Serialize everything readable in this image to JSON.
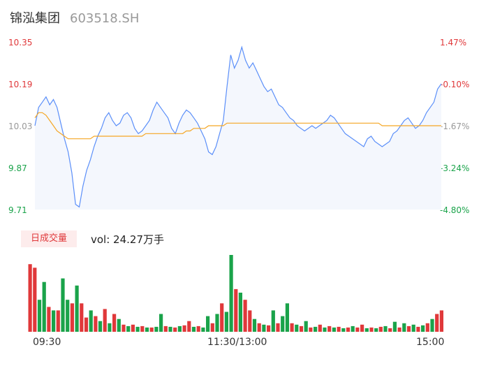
{
  "header": {
    "name": "锦泓集团",
    "code": "603518.SH"
  },
  "volume": {
    "badge": "日成交量",
    "text": "vol: 24.27万手"
  },
  "colors": {
    "up": "#e0383a",
    "down": "#1aa34a",
    "neutral": "#999999",
    "price_line": "#5b8ff9",
    "avg_line": "#f5a623"
  },
  "chart_data": [
    {
      "type": "line",
      "title": "",
      "y_labels_left": [
        "10.35",
        "10.19",
        "10.03",
        "9.87",
        "9.71"
      ],
      "y_labels_right": [
        "1.47%",
        "-0.10%",
        "-1.67%",
        "-3.24%",
        "-4.80%"
      ],
      "ylim": [
        9.71,
        10.35
      ],
      "x_labels": [
        "09:30",
        "11:30/13:00",
        "15:00"
      ],
      "series": [
        {
          "name": "price",
          "values": [
            10.03,
            10.1,
            10.12,
            10.14,
            10.11,
            10.13,
            10.1,
            10.04,
            9.98,
            9.93,
            9.85,
            9.73,
            9.72,
            9.8,
            9.86,
            9.9,
            9.95,
            9.99,
            10.02,
            10.06,
            10.08,
            10.05,
            10.03,
            10.04,
            10.07,
            10.08,
            10.06,
            10.02,
            10.0,
            10.01,
            10.03,
            10.05,
            10.09,
            10.12,
            10.1,
            10.08,
            10.06,
            10.02,
            10.0,
            10.04,
            10.07,
            10.09,
            10.08,
            10.06,
            10.04,
            10.01,
            9.98,
            9.93,
            9.92,
            9.95,
            10.0,
            10.05,
            10.18,
            10.3,
            10.25,
            10.28,
            10.33,
            10.28,
            10.25,
            10.27,
            10.24,
            10.21,
            10.18,
            10.16,
            10.17,
            10.14,
            10.11,
            10.1,
            10.08,
            10.06,
            10.05,
            10.03,
            10.02,
            10.01,
            10.02,
            10.03,
            10.02,
            10.03,
            10.04,
            10.05,
            10.07,
            10.06,
            10.04,
            10.02,
            10.0,
            9.99,
            9.98,
            9.97,
            9.96,
            9.95,
            9.98,
            9.99,
            9.97,
            9.96,
            9.95,
            9.96,
            9.97,
            10.0,
            10.01,
            10.03,
            10.05,
            10.06,
            10.04,
            10.02,
            10.03,
            10.05,
            10.08,
            10.1,
            10.12,
            10.17,
            10.19
          ]
        },
        {
          "name": "average",
          "values": [
            10.06,
            10.08,
            10.08,
            10.07,
            10.05,
            10.03,
            10.01,
            10.0,
            9.99,
            9.98,
            9.98,
            9.98,
            9.98,
            9.98,
            9.98,
            9.98,
            9.99,
            9.99,
            9.99,
            9.99,
            9.99,
            9.99,
            9.99,
            9.99,
            9.99,
            9.99,
            9.99,
            9.99,
            9.99,
            9.99,
            10.0,
            10.0,
            10.0,
            10.0,
            10.0,
            10.0,
            10.0,
            10.0,
            10.0,
            10.0,
            10.0,
            10.01,
            10.01,
            10.02,
            10.02,
            10.02,
            10.02,
            10.03,
            10.03,
            10.03,
            10.03,
            10.03,
            10.04,
            10.04,
            10.04,
            10.04,
            10.04,
            10.04,
            10.04,
            10.04,
            10.04,
            10.04,
            10.04,
            10.04,
            10.04,
            10.04,
            10.04,
            10.04,
            10.04,
            10.04,
            10.04,
            10.04,
            10.04,
            10.04,
            10.04,
            10.04,
            10.04,
            10.04,
            10.04,
            10.04,
            10.04,
            10.04,
            10.04,
            10.04,
            10.04,
            10.04,
            10.04,
            10.04,
            10.04,
            10.04,
            10.04,
            10.04,
            10.04,
            10.04,
            10.03,
            10.03,
            10.03,
            10.03,
            10.03,
            10.03,
            10.03,
            10.03,
            10.03,
            10.03,
            10.03,
            10.03,
            10.03,
            10.03,
            10.03,
            10.03,
            10.03
          ]
        }
      ]
    },
    {
      "type": "bar",
      "title": "",
      "volume_bars": [
        {
          "v": 95,
          "c": "up"
        },
        {
          "v": 90,
          "c": "up"
        },
        {
          "v": 45,
          "c": "down"
        },
        {
          "v": 70,
          "c": "down"
        },
        {
          "v": 35,
          "c": "up"
        },
        {
          "v": 30,
          "c": "down"
        },
        {
          "v": 30,
          "c": "up"
        },
        {
          "v": 75,
          "c": "down"
        },
        {
          "v": 45,
          "c": "down"
        },
        {
          "v": 40,
          "c": "up"
        },
        {
          "v": 65,
          "c": "down"
        },
        {
          "v": 40,
          "c": "up"
        },
        {
          "v": 20,
          "c": "up"
        },
        {
          "v": 30,
          "c": "down"
        },
        {
          "v": 22,
          "c": "up"
        },
        {
          "v": 15,
          "c": "down"
        },
        {
          "v": 32,
          "c": "up"
        },
        {
          "v": 12,
          "c": "down"
        },
        {
          "v": 25,
          "c": "up"
        },
        {
          "v": 18,
          "c": "down"
        },
        {
          "v": 10,
          "c": "up"
        },
        {
          "v": 8,
          "c": "down"
        },
        {
          "v": 10,
          "c": "up"
        },
        {
          "v": 7,
          "c": "down"
        },
        {
          "v": 8,
          "c": "up"
        },
        {
          "v": 6,
          "c": "down"
        },
        {
          "v": 6,
          "c": "up"
        },
        {
          "v": 7,
          "c": "down"
        },
        {
          "v": 25,
          "c": "down"
        },
        {
          "v": 8,
          "c": "up"
        },
        {
          "v": 7,
          "c": "down"
        },
        {
          "v": 6,
          "c": "up"
        },
        {
          "v": 8,
          "c": "down"
        },
        {
          "v": 9,
          "c": "up"
        },
        {
          "v": 15,
          "c": "up"
        },
        {
          "v": 7,
          "c": "down"
        },
        {
          "v": 8,
          "c": "up"
        },
        {
          "v": 6,
          "c": "down"
        },
        {
          "v": 22,
          "c": "down"
        },
        {
          "v": 12,
          "c": "up"
        },
        {
          "v": 25,
          "c": "down"
        },
        {
          "v": 40,
          "c": "up"
        },
        {
          "v": 28,
          "c": "down"
        },
        {
          "v": 108,
          "c": "down"
        },
        {
          "v": 60,
          "c": "up"
        },
        {
          "v": 55,
          "c": "down"
        },
        {
          "v": 45,
          "c": "up"
        },
        {
          "v": 30,
          "c": "up"
        },
        {
          "v": 18,
          "c": "down"
        },
        {
          "v": 12,
          "c": "up"
        },
        {
          "v": 10,
          "c": "down"
        },
        {
          "v": 9,
          "c": "up"
        },
        {
          "v": 30,
          "c": "down"
        },
        {
          "v": 12,
          "c": "up"
        },
        {
          "v": 22,
          "c": "down"
        },
        {
          "v": 40,
          "c": "down"
        },
        {
          "v": 12,
          "c": "up"
        },
        {
          "v": 10,
          "c": "down"
        },
        {
          "v": 8,
          "c": "up"
        },
        {
          "v": 15,
          "c": "down"
        },
        {
          "v": 6,
          "c": "up"
        },
        {
          "v": 7,
          "c": "down"
        },
        {
          "v": 10,
          "c": "up"
        },
        {
          "v": 6,
          "c": "down"
        },
        {
          "v": 8,
          "c": "up"
        },
        {
          "v": 6,
          "c": "down"
        },
        {
          "v": 7,
          "c": "up"
        },
        {
          "v": 5,
          "c": "down"
        },
        {
          "v": 6,
          "c": "up"
        },
        {
          "v": 8,
          "c": "down"
        },
        {
          "v": 6,
          "c": "up"
        },
        {
          "v": 10,
          "c": "up"
        },
        {
          "v": 5,
          "c": "down"
        },
        {
          "v": 6,
          "c": "up"
        },
        {
          "v": 5,
          "c": "down"
        },
        {
          "v": 7,
          "c": "up"
        },
        {
          "v": 8,
          "c": "down"
        },
        {
          "v": 5,
          "c": "up"
        },
        {
          "v": 14,
          "c": "down"
        },
        {
          "v": 6,
          "c": "up"
        },
        {
          "v": 12,
          "c": "down"
        },
        {
          "v": 8,
          "c": "up"
        },
        {
          "v": 10,
          "c": "down"
        },
        {
          "v": 7,
          "c": "up"
        },
        {
          "v": 9,
          "c": "down"
        },
        {
          "v": 12,
          "c": "up"
        },
        {
          "v": 18,
          "c": "down"
        },
        {
          "v": 25,
          "c": "up"
        },
        {
          "v": 30,
          "c": "up"
        }
      ]
    }
  ]
}
